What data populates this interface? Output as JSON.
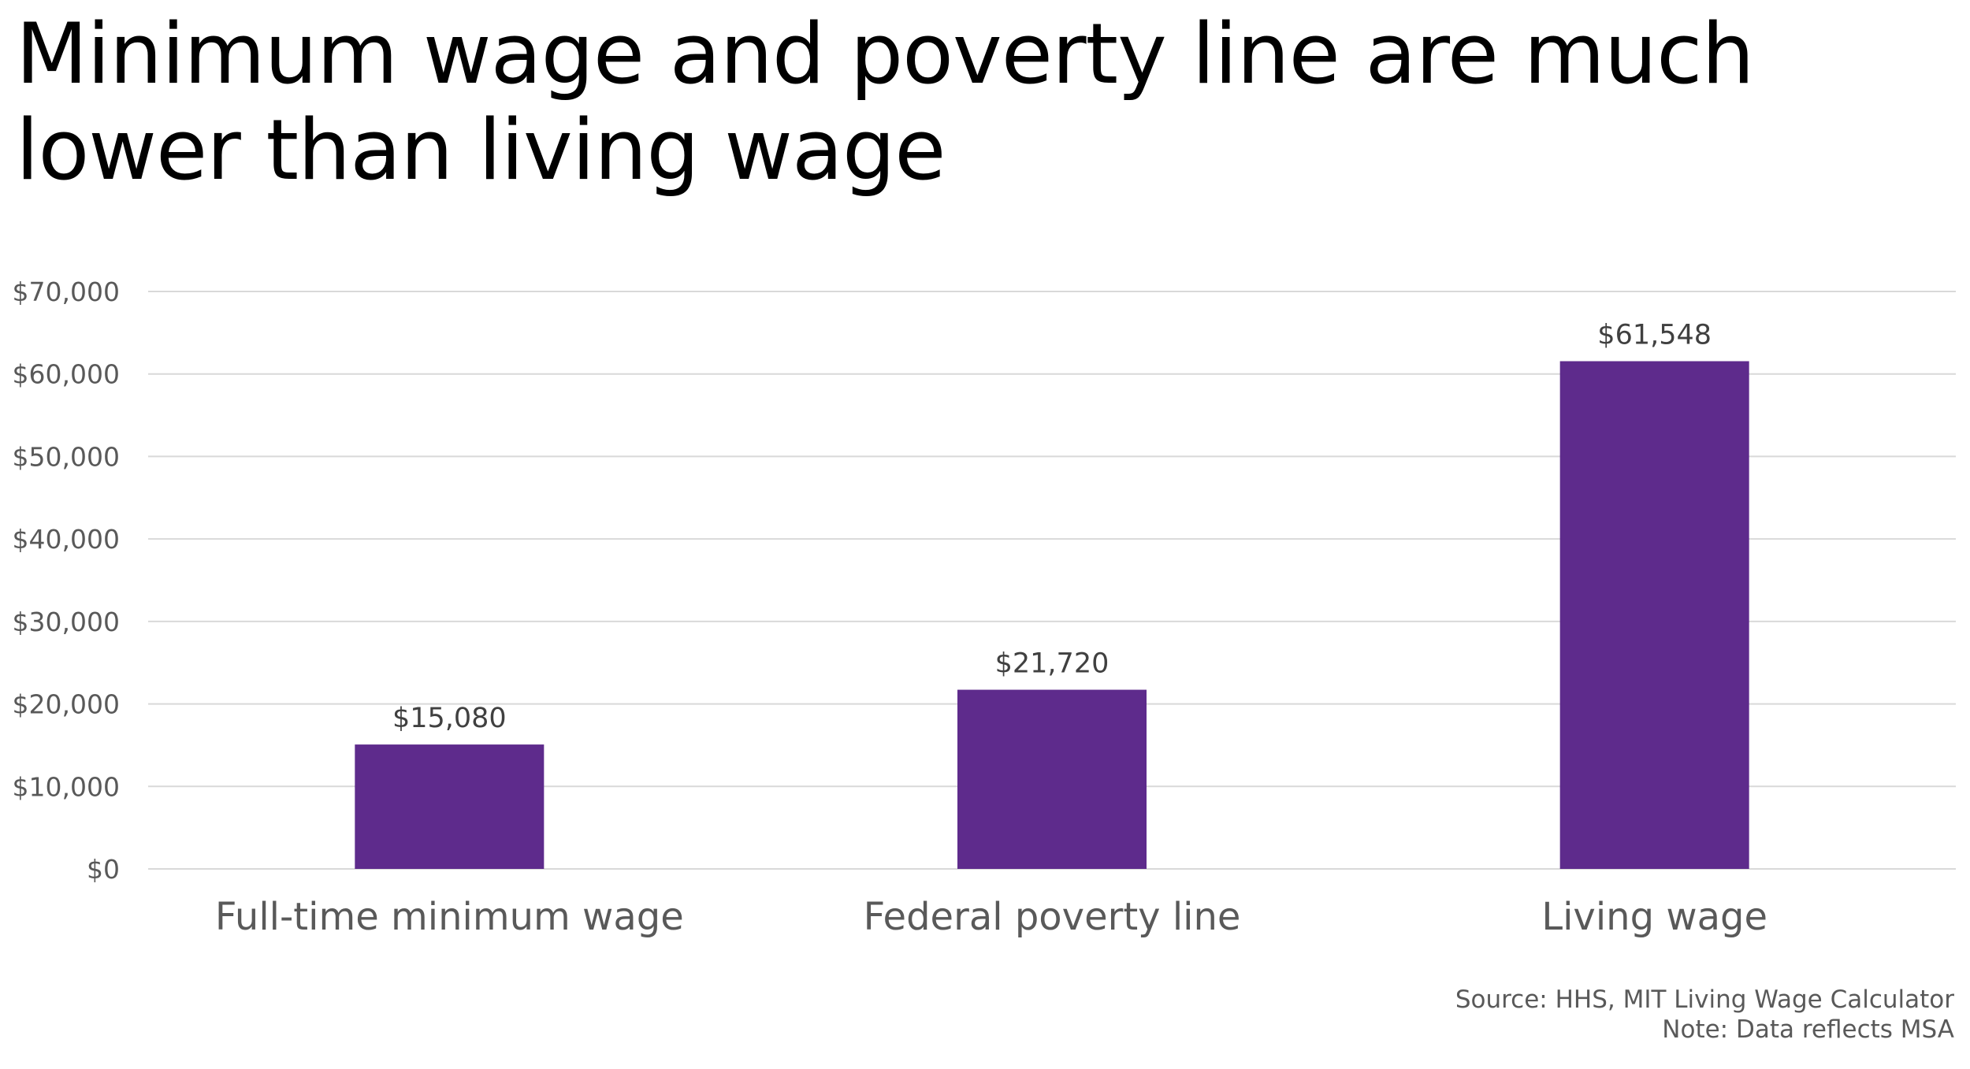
{
  "title_lines": [
    "Minimum wage and poverty line are much",
    "lower than living wage"
  ],
  "source": {
    "line1": "Source: HHS, MIT Living Wage Calculator",
    "line2": "Note: Data reflects MSA"
  },
  "colors": {
    "bar": "#5e2b8c",
    "grid": "#d9d9d9",
    "tick_text": "#595959",
    "label_text": "#404040"
  },
  "chart_data": {
    "type": "bar",
    "title": "Minimum wage and poverty line are much lower than living wage",
    "categories": [
      "Full-time minimum wage",
      "Federal poverty line",
      "Living wage"
    ],
    "values": [
      15080,
      21720,
      61548
    ],
    "data_labels": [
      "$15,080",
      "$21,720",
      "$61,548"
    ],
    "xlabel": "",
    "ylabel": "",
    "ylim": [
      0,
      70000
    ],
    "yticks": [
      0,
      10000,
      20000,
      30000,
      40000,
      50000,
      60000,
      70000
    ],
    "ytick_labels": [
      "$0",
      "$10,000",
      "$20,000",
      "$30,000",
      "$40,000",
      "$50,000",
      "$60,000",
      "$70,000"
    ],
    "grid": true,
    "legend": "none"
  }
}
